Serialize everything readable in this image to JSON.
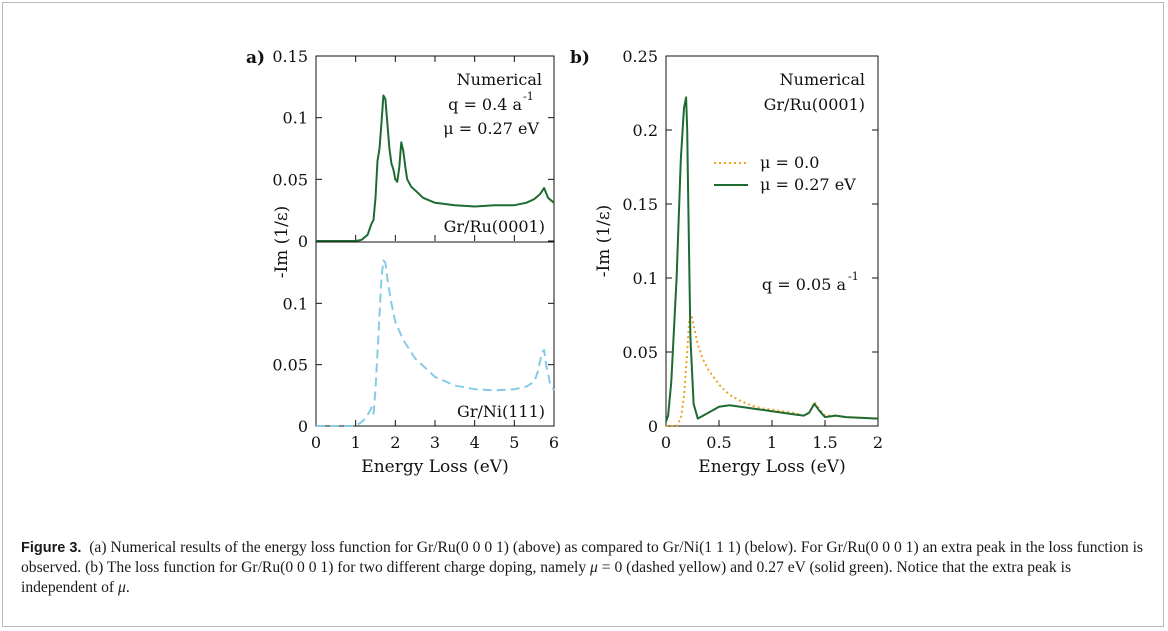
{
  "figure": {
    "panel_a_label": "a)",
    "panel_b_label": "b)",
    "caption": {
      "label": "Figure 3.",
      "part1": "(a) Numerical results of the energy loss function for Gr/Ru(0 0 0 1) (above) as compared to Gr/Ni(1 1 1) (below). For Gr/Ru(0 0 0 1) an extra peak in the loss function is observed. (b) The loss function for Gr/Ru(0 0 0 1) for two different charge doping, namely ",
      "mu_symbol": "μ",
      "part2": " = 0 (dashed yellow) and 0.27 eV (solid green). Notice that the extra peak is independent of ",
      "end": "."
    }
  },
  "colors": {
    "green": "#1e6b32",
    "lightblue": "#86cbe6",
    "orange": "#f0a21e"
  },
  "chart_data": [
    {
      "type": "line",
      "panel": "a-top",
      "xlabel": "",
      "ylabel": "-Im (1/ε)",
      "xlim": [
        0,
        6
      ],
      "ylim": [
        0,
        0.15
      ],
      "yticks": [
        "0",
        "0.05",
        "0.1",
        "0.15"
      ],
      "annotations": [
        "Numerical",
        "q = 0.4 a",
        "-1",
        "μ = 0.27 eV",
        "Gr/Ru(0001)"
      ],
      "series": [
        {
          "name": "Gr/Ru(0001)",
          "style": "solid",
          "color": "#1e6b32",
          "x": [
            0,
            1.0,
            1.15,
            1.3,
            1.4,
            1.45,
            1.5,
            1.55,
            1.6,
            1.65,
            1.7,
            1.75,
            1.8,
            1.85,
            1.9,
            1.95,
            2.0,
            2.05,
            2.1,
            2.15,
            2.2,
            2.25,
            2.3,
            2.4,
            2.5,
            2.7,
            3.0,
            3.5,
            4.0,
            4.5,
            5.0,
            5.3,
            5.5,
            5.65,
            5.75,
            5.85,
            6.0
          ],
          "y": [
            0,
            0,
            0.001,
            0.005,
            0.014,
            0.017,
            0.035,
            0.065,
            0.075,
            0.095,
            0.118,
            0.115,
            0.095,
            0.075,
            0.063,
            0.058,
            0.05,
            0.048,
            0.06,
            0.08,
            0.073,
            0.06,
            0.05,
            0.044,
            0.041,
            0.035,
            0.031,
            0.029,
            0.028,
            0.029,
            0.029,
            0.031,
            0.034,
            0.038,
            0.043,
            0.035,
            0.031
          ]
        }
      ]
    },
    {
      "type": "line",
      "panel": "a-bottom",
      "xlabel": "Energy Loss (eV)",
      "ylabel": "",
      "xlim": [
        0,
        6
      ],
      "ylim": [
        0,
        0.15
      ],
      "xticks": [
        "0",
        "1",
        "2",
        "3",
        "4",
        "5",
        "6"
      ],
      "yticks": [
        "0",
        "0.05",
        "0.1"
      ],
      "annotations": [
        "Gr/Ni(111)"
      ],
      "series": [
        {
          "name": "Gr/Ni(111)",
          "style": "dashed",
          "color": "#86cbe6",
          "x": [
            0,
            0.9,
            1.1,
            1.25,
            1.35,
            1.4,
            1.45,
            1.5,
            1.55,
            1.6,
            1.65,
            1.7,
            1.75,
            1.8,
            1.9,
            2.0,
            2.2,
            2.5,
            3.0,
            3.5,
            4.0,
            4.5,
            5.0,
            5.3,
            5.5,
            5.6,
            5.65,
            5.7,
            5.75,
            5.8,
            5.9,
            6.0
          ],
          "y": [
            0,
            0,
            0.002,
            0.006,
            0.012,
            0.015,
            0.01,
            0.03,
            0.06,
            0.09,
            0.12,
            0.135,
            0.133,
            0.12,
            0.1,
            0.085,
            0.07,
            0.055,
            0.04,
            0.033,
            0.03,
            0.029,
            0.03,
            0.032,
            0.036,
            0.045,
            0.053,
            0.06,
            0.062,
            0.05,
            0.035,
            0.029
          ]
        }
      ]
    },
    {
      "type": "line",
      "panel": "b",
      "xlabel": "Energy Loss (eV)",
      "ylabel": "-Im (1/ε)",
      "xlim": [
        0,
        2
      ],
      "ylim": [
        0,
        0.25
      ],
      "xticks": [
        "0",
        "0.5",
        "1",
        "1.5",
        "2"
      ],
      "yticks": [
        "0",
        "0.05",
        "0.1",
        "0.15",
        "0.2",
        "0.25"
      ],
      "annotations": [
        "Numerical",
        "Gr/Ru(0001)",
        "q = 0.05 a",
        "-1"
      ],
      "legend": "center-right",
      "series": [
        {
          "name": "μ = 0.0",
          "style": "dotted",
          "color": "#f0a21e",
          "x": [
            0,
            0.1,
            0.14,
            0.17,
            0.2,
            0.22,
            0.24,
            0.27,
            0.3,
            0.35,
            0.4,
            0.5,
            0.6,
            0.7,
            0.8,
            0.9,
            1.0,
            1.1,
            1.2,
            1.3,
            1.35,
            1.4,
            1.45,
            1.5,
            1.6,
            1.7,
            2.0
          ],
          "y": [
            0,
            0,
            0.005,
            0.02,
            0.05,
            0.072,
            0.075,
            0.065,
            0.055,
            0.045,
            0.038,
            0.028,
            0.021,
            0.017,
            0.014,
            0.012,
            0.011,
            0.01,
            0.009,
            0.007,
            0.009,
            0.016,
            0.011,
            0.007,
            0.007,
            0.006,
            0.005
          ]
        },
        {
          "name": "μ = 0.27 eV",
          "style": "solid",
          "color": "#1e6b32",
          "x": [
            0,
            0.02,
            0.05,
            0.1,
            0.14,
            0.17,
            0.19,
            0.2,
            0.21,
            0.23,
            0.26,
            0.3,
            0.35,
            0.4,
            0.5,
            0.6,
            0.7,
            0.8,
            0.9,
            1.0,
            1.1,
            1.2,
            1.3,
            1.35,
            1.4,
            1.45,
            1.5,
            1.6,
            1.7,
            2.0
          ],
          "y": [
            0.003,
            0.007,
            0.03,
            0.1,
            0.18,
            0.215,
            0.222,
            0.2,
            0.15,
            0.06,
            0.015,
            0.005,
            0.007,
            0.009,
            0.013,
            0.014,
            0.013,
            0.012,
            0.011,
            0.01,
            0.009,
            0.008,
            0.007,
            0.009,
            0.015,
            0.01,
            0.006,
            0.007,
            0.006,
            0.005
          ]
        }
      ]
    }
  ]
}
